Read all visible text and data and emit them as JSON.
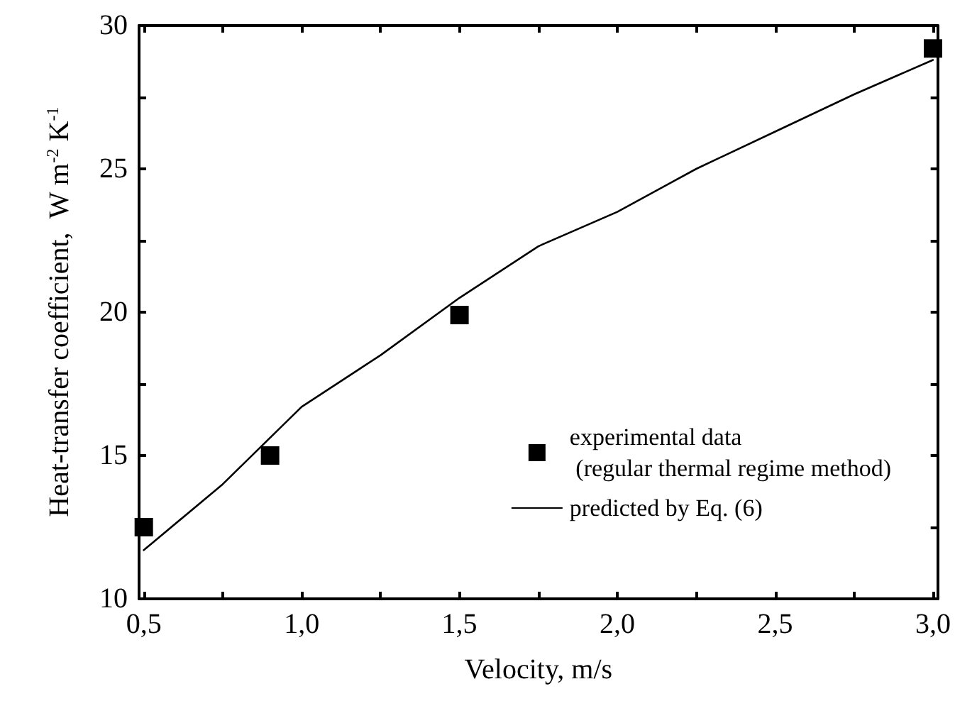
{
  "chart_data": {
    "type": "scatter",
    "xlabel": "Velocity, m/s",
    "ylabel": "Heat-transfer coefficient,  W m$^{-2}$ K$^{-1}$",
    "xlim": [
      0.485,
      3.015
    ],
    "ylim": [
      10,
      30
    ],
    "xticks": [
      {
        "value": 0.5,
        "label": "0,5"
      },
      {
        "value": 0.75,
        "label": null
      },
      {
        "value": 1.0,
        "label": "1,0"
      },
      {
        "value": 1.25,
        "label": null
      },
      {
        "value": 1.5,
        "label": "1,5"
      },
      {
        "value": 1.75,
        "label": null
      },
      {
        "value": 2.0,
        "label": "2,0"
      },
      {
        "value": 2.25,
        "label": null
      },
      {
        "value": 2.5,
        "label": "2,5"
      },
      {
        "value": 2.75,
        "label": null
      },
      {
        "value": 3.0,
        "label": "3,0"
      }
    ],
    "yticks": [
      10,
      {
        "value": 12.5,
        "label": null
      },
      15,
      {
        "value": 17.5,
        "label": null
      },
      20,
      {
        "value": 22.5,
        "label": null
      },
      25,
      {
        "value": 27.5,
        "label": null
      },
      30
    ],
    "grid": false,
    "legend": "bottom right",
    "series": [
      {
        "name": "experimental data\n (regular thermal regime method)",
        "marker": "square",
        "color": "#000000",
        "x": [
          0.5,
          0.9,
          1.5,
          3.0
        ],
        "values": [
          12.5,
          15.0,
          19.9,
          29.2
        ]
      },
      {
        "name": "predicted by Eq. (6)",
        "type": "line",
        "marker": "none",
        "line_style": "solid",
        "color": "#000000",
        "x": [
          0.5,
          0.75,
          1.0,
          1.25,
          1.5,
          1.75,
          2.0,
          2.25,
          2.5,
          2.75,
          3.0
        ],
        "values": [
          11.7,
          14.0,
          16.7,
          18.5,
          20.5,
          22.3,
          23.5,
          25.0,
          26.3,
          27.6,
          28.8
        ]
      }
    ]
  }
}
